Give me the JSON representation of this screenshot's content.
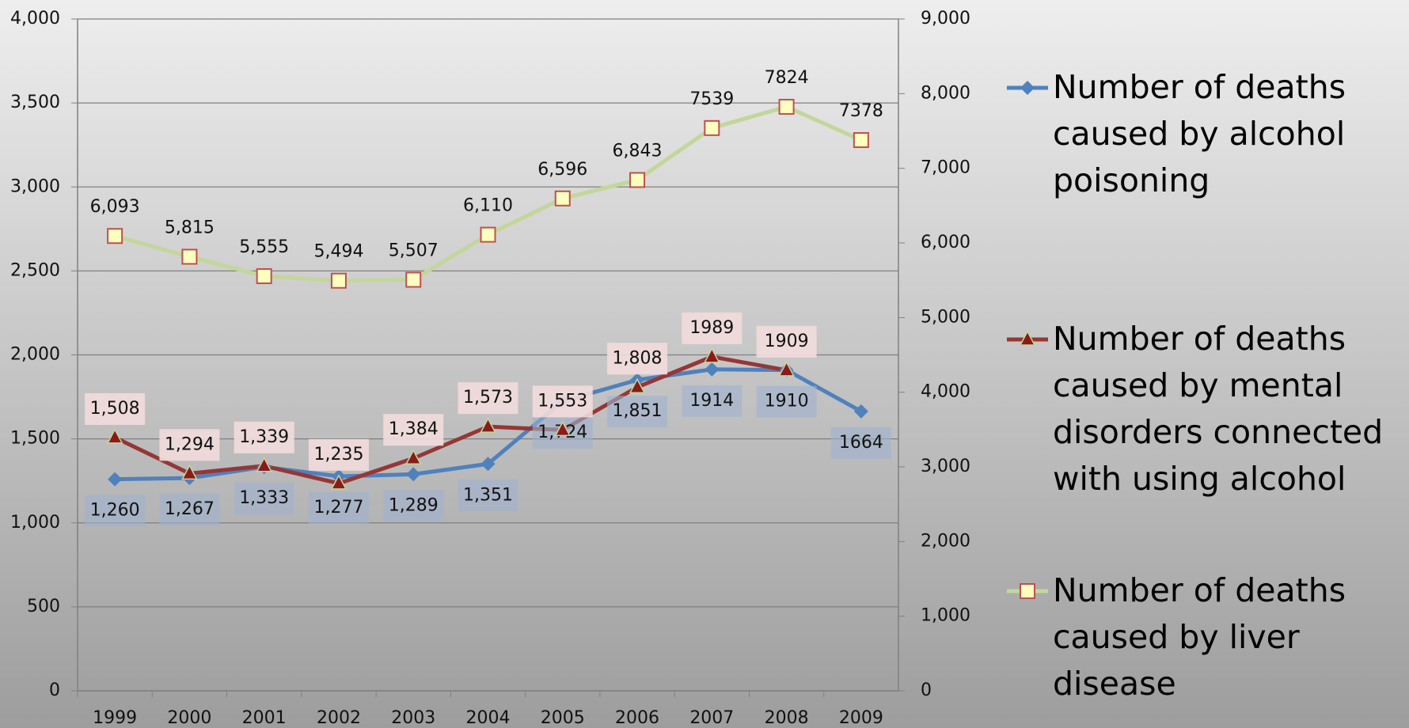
{
  "chart_data": {
    "type": "line",
    "categories": [
      "1999",
      "2000",
      "2001",
      "2002",
      "2003",
      "2004",
      "2005",
      "2006",
      "2007",
      "2008",
      "2009"
    ],
    "series": [
      {
        "name": "Number of deaths caused by alcohol poisoning",
        "color": "#4f81bd",
        "marker": "diamond",
        "marker_color": "#4f81bd",
        "values": [
          1260,
          1267,
          1333,
          1277,
          1289,
          1351,
          1724,
          1851,
          1914,
          1910,
          1664
        ],
        "value_labels": [
          "1,260",
          "1,267",
          "1,333",
          "1,277",
          "1,289",
          "1,351",
          "1,724",
          "1,851",
          "1914",
          "1910",
          "1664"
        ]
      },
      {
        "name": "Number of deaths caused by mental disorders connected with using alcohol",
        "color": "#953735",
        "marker": "triangle",
        "marker_color": "#8b1a1a",
        "values": [
          1508,
          1294,
          1339,
          1235,
          1384,
          1573,
          1553,
          1808,
          1989,
          1909,
          null
        ],
        "value_labels": [
          "1,508",
          "1,294",
          "1,339",
          "1,235",
          "1,384",
          "1,573",
          "1,553",
          "1,808",
          "1989",
          "1909",
          null
        ]
      },
      {
        "name": "Number of deaths caused by liver disease",
        "color": "#c3d69b",
        "marker": "square",
        "marker_color": "#ffffc0",
        "axis": "y2",
        "values": [
          6093,
          5815,
          5555,
          5494,
          5507,
          6110,
          6596,
          6843,
          7539,
          7824,
          7378
        ],
        "value_labels": [
          "6,093",
          "5,815",
          "5,555",
          "5,494",
          "5,507",
          "6,110",
          "6,596",
          "6,843",
          "7539",
          "7824",
          "7378"
        ]
      }
    ],
    "ylim": [
      0,
      4000
    ],
    "yticks": [
      0,
      {
        "value": 500,
        "label": "500"
      },
      {
        "value": 1000,
        "label": "1,000"
      },
      {
        "value": 1500,
        "label": "1,500"
      },
      {
        "value": 2000,
        "label": "2,000"
      },
      {
        "value": 2500,
        "label": "2,500"
      },
      {
        "value": 3000,
        "label": "3,000"
      },
      {
        "value": 3500,
        "label": "3,500"
      },
      {
        "value": 4000,
        "label": "4,000"
      }
    ],
    "y2lim": [
      0,
      9000
    ],
    "y2ticks": [
      0,
      {
        "value": 1000,
        "label": "1,000"
      },
      {
        "value": 2000,
        "label": "2,000"
      },
      {
        "value": 3000,
        "label": "3,000"
      },
      {
        "value": 4000,
        "label": "4,000"
      },
      {
        "value": 5000,
        "label": "5,000"
      },
      {
        "value": 6000,
        "label": "6,000"
      },
      {
        "value": 7000,
        "label": "7,000"
      },
      {
        "value": 8000,
        "label": "8,000"
      },
      {
        "value": 9000,
        "label": "9,000"
      }
    ],
    "grid": true,
    "legend": "right"
  }
}
